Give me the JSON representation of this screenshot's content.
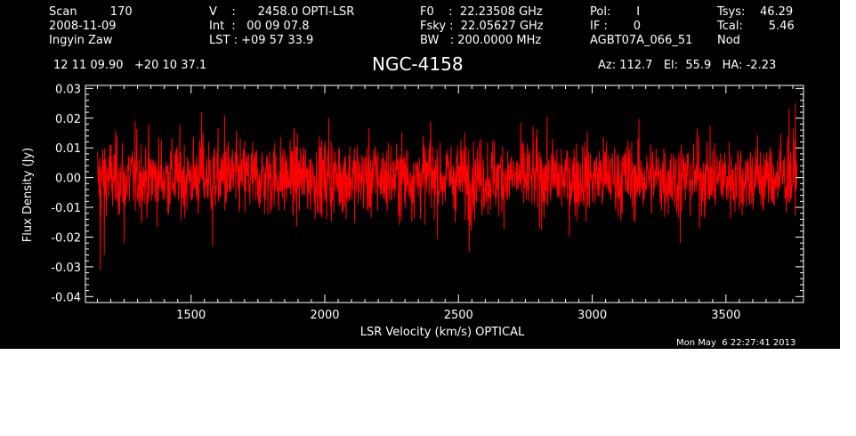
{
  "header": {
    "col1": [
      "Scan         170",
      "2008-11-09",
      "Ingyin Zaw"
    ],
    "col2": [
      "V    :      2458.0 OPTI-LSR",
      "Int  :   00 09 07.8",
      "LST : +09 57 33.9"
    ],
    "col3": [
      "F0    :  22.23508 GHz",
      "Fsky :  22.05627 GHz",
      "BW   : 200.0000 MHz"
    ],
    "col4": [
      "Pol:       I",
      "IF :       0",
      "AGBT07A_066_51"
    ],
    "col5": [
      "Tsys:    46.29",
      "Tcal:       5.46",
      "Nod"
    ],
    "coords": "12 11 09.90   +20 10 37.1",
    "source": "NGC-4158",
    "pointing": "Az: 112.7   El:  55.9   HA: -2.23",
    "timestamp": "Mon May  6 22:27:41 2013"
  },
  "colors": {
    "background": "#000000",
    "foreground": "#ffffff",
    "series": "#ff0000"
  },
  "chart_data": {
    "type": "line",
    "xlabel": "LSR Velocity (km/s) OPTICAL",
    "ylabel": "Flux Density (Jy)",
    "xlim": [
      1105,
      3790
    ],
    "ylim": [
      -0.042,
      0.031
    ],
    "xticks": [
      1500,
      2000,
      2500,
      3000,
      3500
    ],
    "xtick_labels": [
      "1500",
      "2000",
      "2500",
      "3000",
      "3500"
    ],
    "yticks": [
      -0.04,
      -0.03,
      -0.02,
      -0.01,
      0.0,
      0.01,
      0.02,
      0.03
    ],
    "ytick_labels": [
      "-0.04",
      "-0.03",
      "-0.02",
      "-0.01",
      "0.00",
      "0.01",
      "0.02",
      "0.03"
    ],
    "grid": false,
    "series": [
      {
        "color": "#ff0000",
        "x_range": [
          1150,
          3765
        ],
        "points": 2048,
        "mean": 0.0,
        "noise_rms": 0.0065,
        "edge_dips": [
          {
            "x": 1160,
            "y": -0.031
          },
          {
            "x": 1175,
            "y": -0.026
          }
        ],
        "notable_peaks": [
          {
            "x": 1290,
            "y": 0.019
          },
          {
            "x": 1540,
            "y": 0.022
          },
          {
            "x": 1625,
            "y": 0.021
          },
          {
            "x": 2015,
            "y": 0.02
          },
          {
            "x": 2395,
            "y": 0.019
          },
          {
            "x": 3735,
            "y": 0.023
          },
          {
            "x": 3760,
            "y": 0.025
          }
        ],
        "notable_troughs": [
          {
            "x": 1250,
            "y": -0.022
          },
          {
            "x": 1580,
            "y": -0.023
          },
          {
            "x": 2540,
            "y": -0.025
          },
          {
            "x": 3330,
            "y": -0.022
          }
        ]
      }
    ]
  }
}
